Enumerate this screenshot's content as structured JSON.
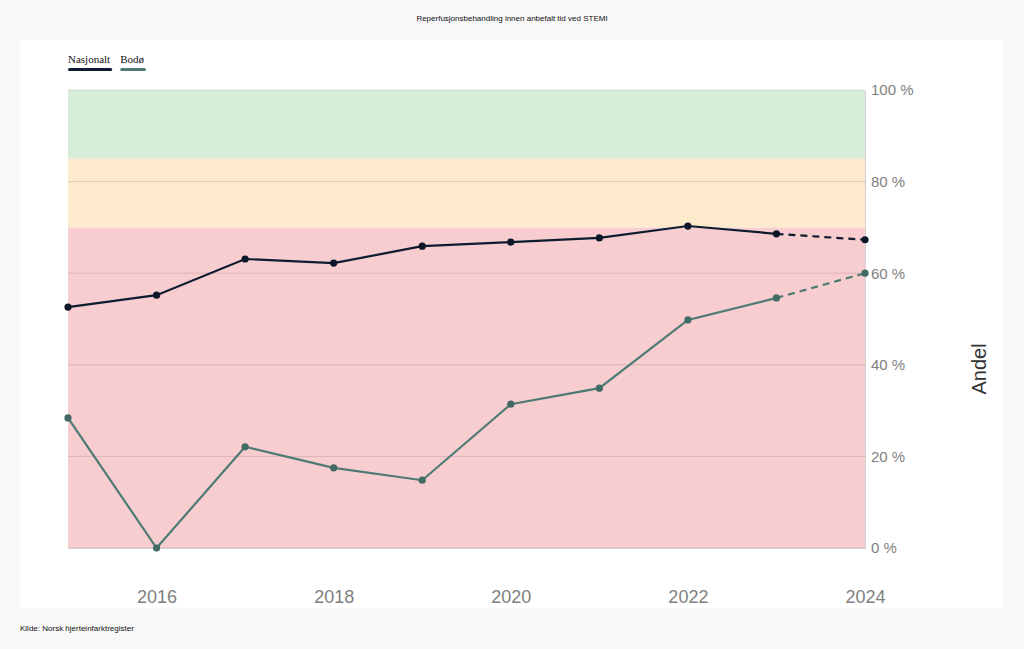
{
  "chart_data": {
    "type": "line",
    "title": "Reperfusjonsbehandling innen anbefalt tid ved STEMI",
    "y_label": "Andel",
    "source": "Kilde: Norsk hjerteinfarktregister",
    "x": [
      2015,
      2016,
      2017,
      2018,
      2019,
      2020,
      2021,
      2022,
      2023,
      2024
    ],
    "series": [
      {
        "name": "Nasjonalt",
        "color": "#0e1c30",
        "marker": "circle",
        "line_style": "dashed-last",
        "values": [
          52.6,
          55.2,
          63.1,
          62.2,
          65.9,
          66.8,
          67.7,
          70.3,
          68.6,
          67.3
        ]
      },
      {
        "name": "Bodø",
        "color": "#4d7b74",
        "marker": "circle",
        "line_style": "dashed-last",
        "values": [
          28.4,
          0,
          22.1,
          17.5,
          14.8,
          31.4,
          34.9,
          49.8,
          54.6,
          60.0
        ]
      }
    ],
    "xlim": [
      2015,
      2024
    ],
    "xticks": [
      2016,
      2018,
      2020,
      2022,
      2024
    ],
    "ylim": [
      0,
      100
    ],
    "yticks": [
      {
        "value": 0,
        "label": "0 %"
      },
      {
        "value": 20,
        "label": "20 %"
      },
      {
        "value": 40,
        "label": "40 %"
      },
      {
        "value": 60,
        "label": "60 %"
      },
      {
        "value": 80,
        "label": "80 %"
      },
      {
        "value": 100,
        "label": "100 %"
      }
    ],
    "grid": true,
    "legend": "top-left",
    "bands": [
      {
        "from": 0,
        "to": 70,
        "color": "#f8cdd0"
      },
      {
        "from": 70,
        "to": 85,
        "color": "#fde9cc"
      },
      {
        "from": 85,
        "to": 100,
        "color": "#d8edd8"
      }
    ]
  }
}
